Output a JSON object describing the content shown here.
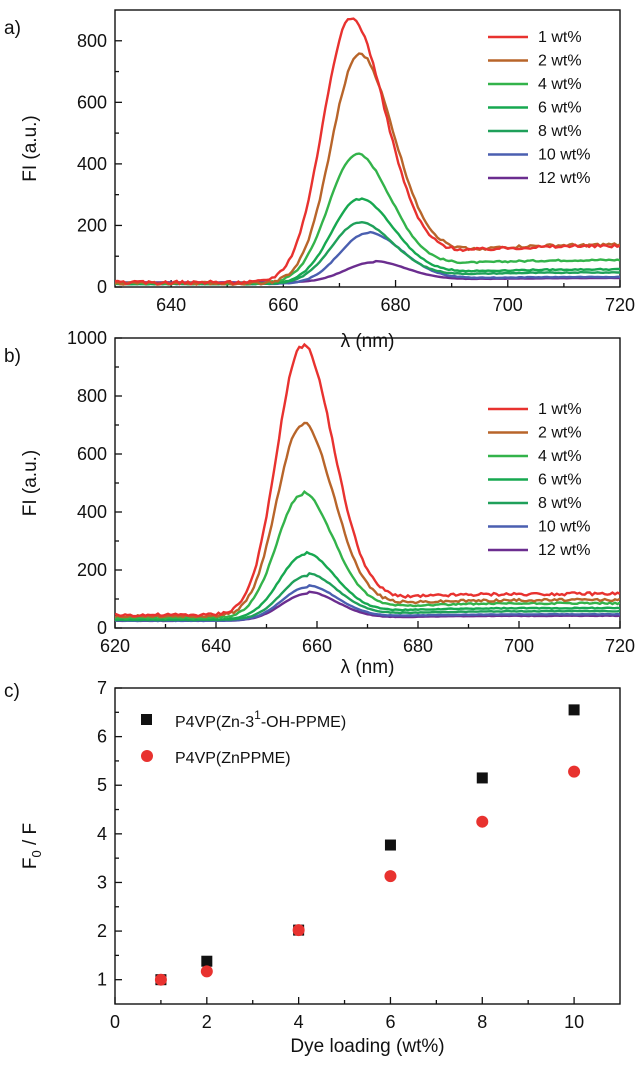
{
  "chart_data": [
    {
      "panel": "a)",
      "type": "line",
      "xlabel": "λ (nm)",
      "ylabel": "FI (a.u.)",
      "xlim": [
        630,
        720
      ],
      "ylim": [
        0,
        900
      ],
      "xticks": [
        640,
        660,
        680,
        700,
        720
      ],
      "yticks": [
        0,
        200,
        400,
        600,
        800
      ],
      "legend_position": "top-right",
      "series": [
        {
          "name": "1 wt%",
          "color": "#e8322f",
          "peak_x": 672,
          "peak": 870,
          "base": 15,
          "tail": 130
        },
        {
          "name": "2 wt%",
          "color": "#b8652a",
          "peak_x": 673.5,
          "peak": 755,
          "base": 12,
          "tail": 135
        },
        {
          "name": "4 wt%",
          "color": "#33b34a",
          "peak_x": 673,
          "peak": 430,
          "base": 12,
          "tail": 85
        },
        {
          "name": "6 wt%",
          "color": "#17a850",
          "peak_x": 673.5,
          "peak": 285,
          "base": 10,
          "tail": 55
        },
        {
          "name": "8 wt%",
          "color": "#1fa05a",
          "peak_x": 673.5,
          "peak": 208,
          "base": 10,
          "tail": 45
        },
        {
          "name": "10 wt%",
          "color": "#4a5fb0",
          "peak_x": 675,
          "peak": 175,
          "base": 10,
          "tail": 30
        },
        {
          "name": "12 wt%",
          "color": "#6b2d8f",
          "peak_x": 676,
          "peak": 80,
          "base": 15,
          "tail": 25
        }
      ]
    },
    {
      "panel": "b)",
      "type": "line",
      "xlabel": "λ (nm)",
      "ylabel": "FI (a.u.)",
      "xlim": [
        620,
        720
      ],
      "ylim": [
        0,
        1000
      ],
      "xticks": [
        620,
        640,
        660,
        680,
        700,
        720
      ],
      "yticks": [
        0,
        200,
        400,
        600,
        800,
        1000
      ],
      "legend_position": "top-right",
      "series": [
        {
          "name": "1 wt%",
          "color": "#e8322f",
          "peak_x": 657,
          "peak": 970,
          "base": 45,
          "tail": 105
        },
        {
          "name": "2 wt%",
          "color": "#b8652a",
          "peak_x": 657,
          "peak": 700,
          "base": 40,
          "tail": 85
        },
        {
          "name": "4 wt%",
          "color": "#33b34a",
          "peak_x": 657,
          "peak": 460,
          "base": 35,
          "tail": 75
        },
        {
          "name": "6 wt%",
          "color": "#17a850",
          "peak_x": 657.5,
          "peak": 252,
          "base": 30,
          "tail": 60
        },
        {
          "name": "8 wt%",
          "color": "#1fa05a",
          "peak_x": 658,
          "peak": 180,
          "base": 28,
          "tail": 50
        },
        {
          "name": "10 wt%",
          "color": "#4a5fb0",
          "peak_x": 658,
          "peak": 140,
          "base": 25,
          "tail": 40
        },
        {
          "name": "12 wt%",
          "color": "#6b2d8f",
          "peak_x": 658,
          "peak": 118,
          "base": 25,
          "tail": 35
        }
      ]
    },
    {
      "panel": "c)",
      "type": "scatter",
      "xlabel": "Dye loading (wt%)",
      "ylabel": "F0 / F",
      "xlim": [
        0,
        11
      ],
      "ylim": [
        0.5,
        7
      ],
      "xticks": [
        0,
        2,
        4,
        6,
        8,
        10
      ],
      "yticks": [
        1,
        2,
        3,
        4,
        5,
        6,
        7
      ],
      "legend_position": "top-left",
      "series": [
        {
          "name": "P4VP(Zn-3¹-OH-PPME)",
          "marker": "square",
          "color": "#111111",
          "x": [
            1,
            2,
            4,
            6,
            8,
            10
          ],
          "y": [
            1.0,
            1.38,
            2.02,
            3.77,
            5.15,
            6.55
          ]
        },
        {
          "name": "P4VP(ZnPPME)",
          "marker": "circle",
          "color": "#e8322f",
          "x": [
            1,
            2,
            4,
            6,
            8,
            10
          ],
          "y": [
            1.0,
            1.17,
            2.02,
            3.13,
            4.25,
            5.28
          ]
        }
      ]
    }
  ]
}
